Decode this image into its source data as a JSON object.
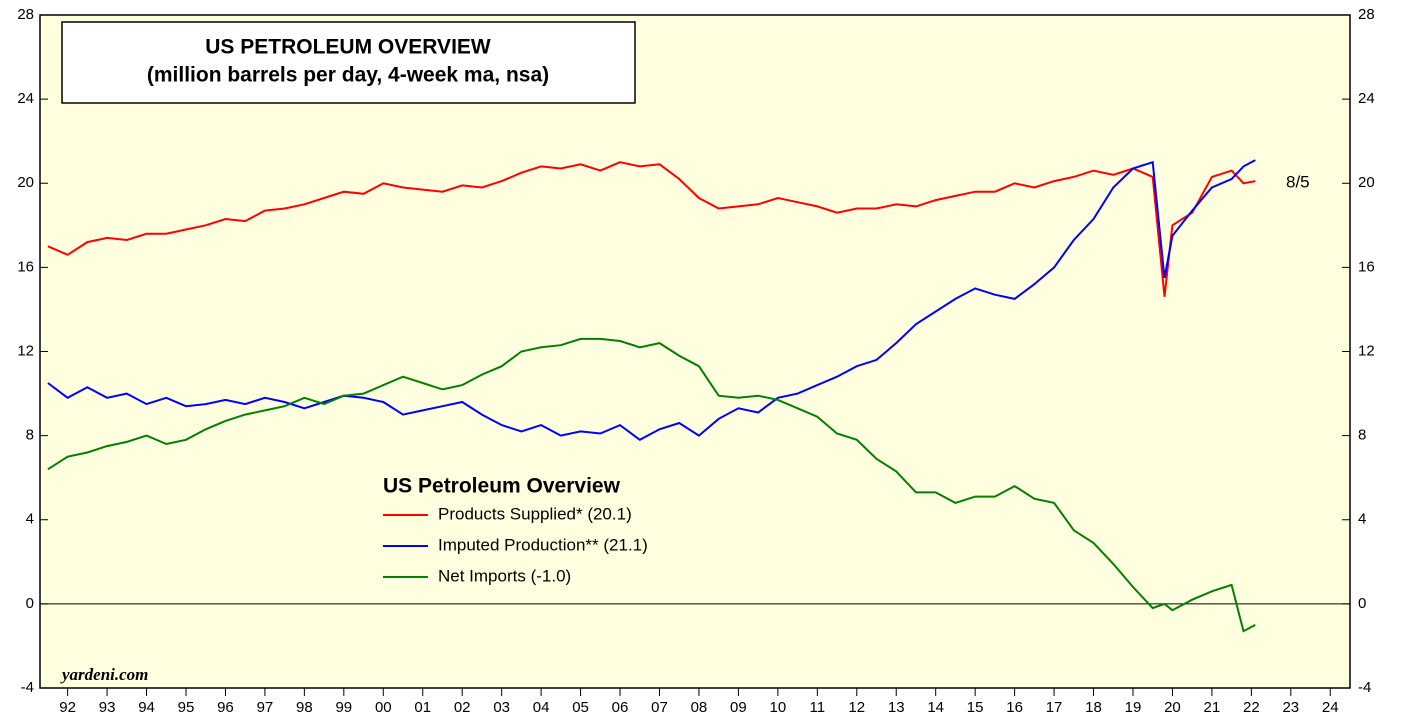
{
  "chart_data": {
    "type": "line",
    "title": "US PETROLEUM OVERVIEW",
    "subtitle": "(million barrels per day, 4-week ma, nsa)",
    "legend_title": "US Petroleum Overview",
    "annotations": {
      "source": "yardeni.com",
      "date": "8/5"
    },
    "x": [
      1992,
      1992.5,
      1993,
      1993.5,
      1994,
      1994.5,
      1995,
      1995.5,
      1996,
      1996.5,
      1997,
      1997.5,
      1998,
      1998.5,
      1999,
      1999.5,
      2000,
      2000.5,
      2001,
      2001.5,
      2002,
      2002.5,
      2003,
      2003.5,
      2004,
      2004.5,
      2005,
      2005.5,
      2006,
      2006.5,
      2007,
      2007.5,
      2008,
      2008.5,
      2009,
      2009.5,
      2010,
      2010.5,
      2011,
      2011.5,
      2012,
      2012.5,
      2013,
      2013.5,
      2014,
      2014.5,
      2015,
      2015.5,
      2016,
      2016.5,
      2017,
      2017.5,
      2018,
      2018.5,
      2019,
      2019.5,
      2020,
      2020.3,
      2020.5,
      2021,
      2021.5,
      2022,
      2022.3,
      2022.6
    ],
    "series": [
      {
        "name": "Products Supplied* (20.1)",
        "color": "#ff0000",
        "values": [
          17,
          16.6,
          17.2,
          17.4,
          17.3,
          17.6,
          17.6,
          17.8,
          18.0,
          18.3,
          18.2,
          18.7,
          18.8,
          19.0,
          19.3,
          19.6,
          19.5,
          20.0,
          19.8,
          19.7,
          19.6,
          19.9,
          19.8,
          20.1,
          20.5,
          20.8,
          20.7,
          20.9,
          20.6,
          21.0,
          20.8,
          20.9,
          20.2,
          19.3,
          18.8,
          18.9,
          19.0,
          19.3,
          19.1,
          18.9,
          18.6,
          18.8,
          18.8,
          19.0,
          18.9,
          19.2,
          19.4,
          19.6,
          19.6,
          20.0,
          19.8,
          20.1,
          20.3,
          20.6,
          20.4,
          20.7,
          20.3,
          14.6,
          18.0,
          18.6,
          20.3,
          20.6,
          20.0,
          20.1
        ]
      },
      {
        "name": "Imputed Production** (21.1)",
        "color": "#0000ff",
        "values": [
          10.5,
          9.8,
          10.3,
          9.8,
          10.0,
          9.5,
          9.8,
          9.4,
          9.5,
          9.7,
          9.5,
          9.8,
          9.6,
          9.3,
          9.6,
          9.9,
          9.8,
          9.6,
          9.0,
          9.2,
          9.4,
          9.6,
          9.0,
          8.5,
          8.2,
          8.5,
          8.0,
          8.2,
          8.1,
          8.5,
          7.8,
          8.3,
          8.6,
          8.0,
          8.8,
          9.3,
          9.1,
          9.8,
          10.0,
          10.4,
          10.8,
          11.3,
          11.6,
          12.4,
          13.3,
          13.9,
          14.5,
          15.0,
          14.7,
          14.5,
          15.2,
          16.0,
          17.3,
          18.3,
          19.8,
          20.7,
          21.0,
          15.5,
          17.5,
          18.7,
          19.8,
          20.2,
          20.8,
          21.1
        ]
      },
      {
        "name": "Net Imports (-1.0)",
        "color": "#008000",
        "values": [
          6.4,
          7.0,
          7.2,
          7.5,
          7.7,
          8.0,
          7.6,
          7.8,
          8.3,
          8.7,
          9.0,
          9.2,
          9.4,
          9.8,
          9.5,
          9.9,
          10.0,
          10.4,
          10.8,
          10.5,
          10.2,
          10.4,
          10.9,
          11.3,
          12.0,
          12.2,
          12.3,
          12.6,
          12.6,
          12.5,
          12.2,
          12.4,
          11.8,
          11.3,
          9.9,
          9.8,
          9.9,
          9.7,
          9.3,
          8.9,
          8.1,
          7.8,
          6.9,
          6.3,
          5.3,
          5.3,
          4.8,
          5.1,
          5.1,
          5.6,
          5.0,
          4.8,
          3.5,
          2.9,
          1.9,
          0.8,
          -0.2,
          0.0,
          -0.3,
          0.2,
          0.6,
          0.9,
          -1.3,
          -1.0
        ]
      }
    ],
    "xlim": [
      1991.8,
      2025
    ],
    "xticks": [
      {
        "value": 1992.5,
        "label": "92"
      },
      {
        "value": 1993.5,
        "label": "93"
      },
      {
        "value": 1994.5,
        "label": "94"
      },
      {
        "value": 1995.5,
        "label": "95"
      },
      {
        "value": 1996.5,
        "label": "96"
      },
      {
        "value": 1997.5,
        "label": "97"
      },
      {
        "value": 1998.5,
        "label": "98"
      },
      {
        "value": 1999.5,
        "label": "99"
      },
      {
        "value": 2000.5,
        "label": "00"
      },
      {
        "value": 2001.5,
        "label": "01"
      },
      {
        "value": 2002.5,
        "label": "02"
      },
      {
        "value": 2003.5,
        "label": "03"
      },
      {
        "value": 2004.5,
        "label": "04"
      },
      {
        "value": 2005.5,
        "label": "05"
      },
      {
        "value": 2006.5,
        "label": "06"
      },
      {
        "value": 2007.5,
        "label": "07"
      },
      {
        "value": 2008.5,
        "label": "08"
      },
      {
        "value": 2009.5,
        "label": "09"
      },
      {
        "value": 2010.5,
        "label": "10"
      },
      {
        "value": 2011.5,
        "label": "11"
      },
      {
        "value": 2012.5,
        "label": "12"
      },
      {
        "value": 2013.5,
        "label": "13"
      },
      {
        "value": 2014.5,
        "label": "14"
      },
      {
        "value": 2015.5,
        "label": "15"
      },
      {
        "value": 2016.5,
        "label": "16"
      },
      {
        "value": 2017.5,
        "label": "17"
      },
      {
        "value": 2018.5,
        "label": "18"
      },
      {
        "value": 2019.5,
        "label": "19"
      },
      {
        "value": 2020.5,
        "label": "20"
      },
      {
        "value": 2021.5,
        "label": "21"
      },
      {
        "value": 2022.5,
        "label": "22"
      },
      {
        "value": 2023.5,
        "label": "23"
      },
      {
        "value": 2024.5,
        "label": "24"
      }
    ],
    "ylim": [
      -4,
      28
    ],
    "yticks": [
      -4,
      0,
      4,
      8,
      12,
      16,
      20,
      24,
      28
    ],
    "reference_line": 0,
    "background": "#ffffe0"
  }
}
